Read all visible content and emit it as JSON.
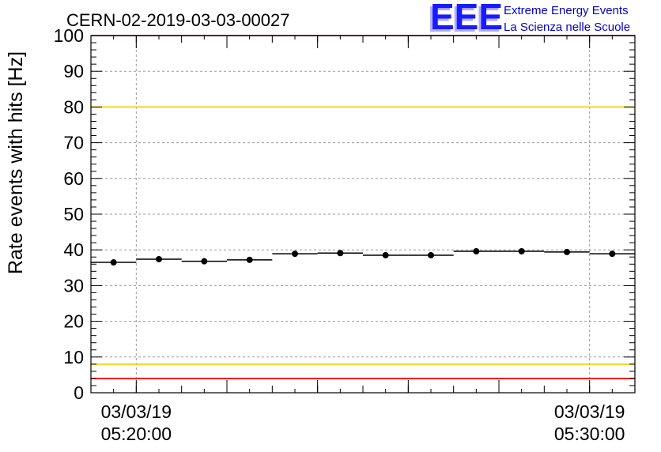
{
  "chart_data": {
    "type": "scatter",
    "title": "CERN-02-2019-03-03-00027",
    "ylabel": "Rate events with hits [Hz]",
    "xlabel": "",
    "ylim": [
      0,
      100
    ],
    "yticks": [
      "0",
      "10",
      "20",
      "30",
      "40",
      "50",
      "60",
      "70",
      "80",
      "90",
      "100"
    ],
    "xlim": [
      "2019-03-03T05:19:00",
      "2019-03-03T05:31:00"
    ],
    "xtick_labels": [
      {
        "date": "03/03/19",
        "time": "05:20:00",
        "x": "2019-03-03T05:20:00"
      },
      {
        "date": "03/03/19",
        "time": "05:30:00",
        "x": "2019-03-03T05:30:00"
      }
    ],
    "grid": true,
    "series": [
      {
        "x": [
          "2019-03-03T05:19:30",
          "2019-03-03T05:20:30",
          "2019-03-03T05:21:30",
          "2019-03-03T05:22:30",
          "2019-03-03T05:23:30",
          "2019-03-03T05:24:30",
          "2019-03-03T05:25:30",
          "2019-03-03T05:26:30",
          "2019-03-03T05:27:30",
          "2019-03-03T05:28:30",
          "2019-03-03T05:29:30",
          "2019-03-03T05:30:30"
        ],
        "values": [
          36.5,
          37.4,
          36.8,
          37.2,
          38.9,
          39.1,
          38.5,
          38.5,
          39.6,
          39.6,
          39.4,
          38.9
        ],
        "bin_width_minutes": 1,
        "color": "#000000"
      }
    ],
    "reference_lines": [
      {
        "y": 100,
        "color": "#ff0000"
      },
      {
        "y": 80,
        "color": "#ffcc00"
      },
      {
        "y": 8,
        "color": "#ffcc00"
      },
      {
        "y": 4,
        "color": "#ff0000"
      }
    ]
  },
  "logo": {
    "mark": "EEE",
    "line1": "Extreme Energy Events",
    "line2": "La Scienza nelle Scuole",
    "color": "#1a1aff"
  }
}
